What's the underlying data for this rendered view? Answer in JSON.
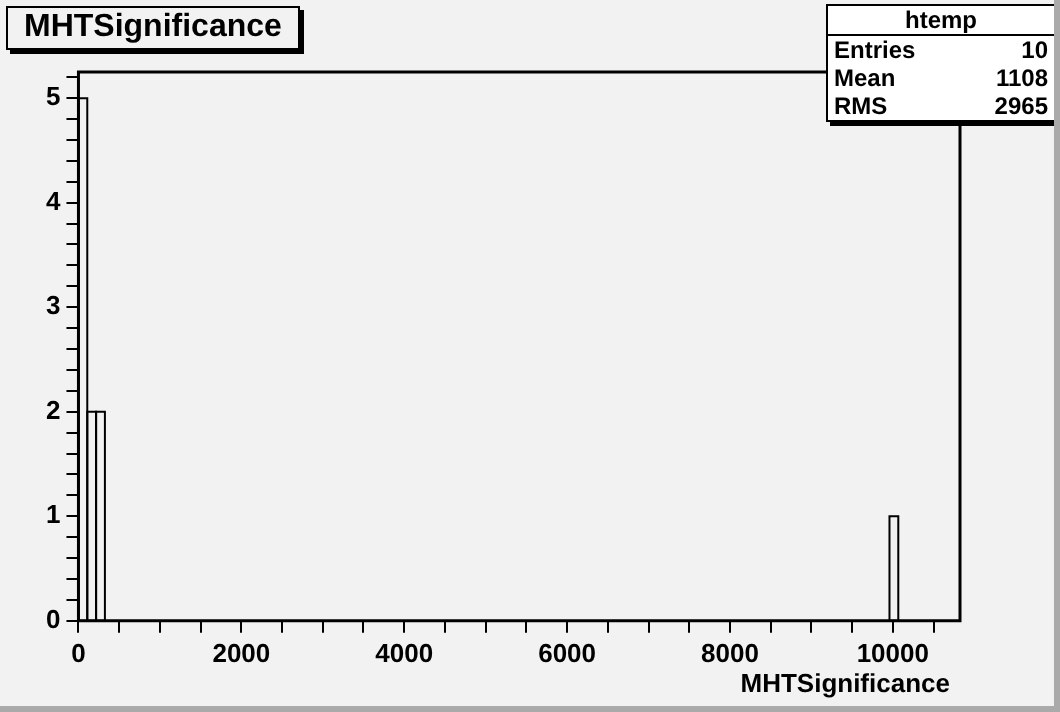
{
  "chart_data": {
    "type": "histogram",
    "title": "MHTSignificance",
    "xlabel": "MHTSignificance",
    "bins": [
      0,
      108.25,
      216.5,
      324.75,
      9959,
      10067.25
    ],
    "values": [
      5,
      2,
      2,
      0,
      1
    ],
    "color": "#000000",
    "xlim": [
      0,
      10825
    ],
    "xticks": [
      0,
      {
        "value": 500,
        "label": null
      },
      {
        "value": 1000,
        "label": null
      },
      {
        "value": 1500,
        "label": null
      },
      2000,
      {
        "value": 2500,
        "label": null
      },
      {
        "value": 3000,
        "label": null
      },
      {
        "value": 3500,
        "label": null
      },
      4000,
      {
        "value": 4500,
        "label": null
      },
      {
        "value": 5000,
        "label": null
      },
      {
        "value": 5500,
        "label": null
      },
      6000,
      {
        "value": 6500,
        "label": null
      },
      {
        "value": 7000,
        "label": null
      },
      {
        "value": 7500,
        "label": null
      },
      8000,
      {
        "value": 8500,
        "label": null
      },
      {
        "value": 9000,
        "label": null
      },
      {
        "value": 9500,
        "label": null
      },
      10000,
      {
        "value": 10500,
        "label": null
      }
    ],
    "ylim": [
      0,
      5.25
    ],
    "yticks": [
      0,
      {
        "value": 0.2,
        "label": null
      },
      {
        "value": 0.4,
        "label": null
      },
      {
        "value": 0.6,
        "label": null
      },
      {
        "value": 0.8,
        "label": null
      },
      1,
      {
        "value": 1.2,
        "label": null
      },
      {
        "value": 1.4,
        "label": null
      },
      {
        "value": 1.6,
        "label": null
      },
      {
        "value": 1.8,
        "label": null
      },
      2,
      {
        "value": 2.2,
        "label": null
      },
      {
        "value": 2.4,
        "label": null
      },
      {
        "value": 2.6,
        "label": null
      },
      {
        "value": 2.8,
        "label": null
      },
      3,
      {
        "value": 3.2,
        "label": null
      },
      {
        "value": 3.4,
        "label": null
      },
      {
        "value": 3.6,
        "label": null
      },
      {
        "value": 3.8,
        "label": null
      },
      4,
      {
        "value": 4.2,
        "label": null
      },
      {
        "value": 4.4,
        "label": null
      },
      {
        "value": 4.6,
        "label": null
      },
      {
        "value": 4.8,
        "label": null
      },
      5,
      {
        "value": 5.2,
        "label": null
      }
    ],
    "grid": false,
    "legend": false,
    "annotations": [
      "htemp",
      "Entries",
      "10",
      "Mean",
      "1108",
      "RMS",
      "2965"
    ]
  }
}
